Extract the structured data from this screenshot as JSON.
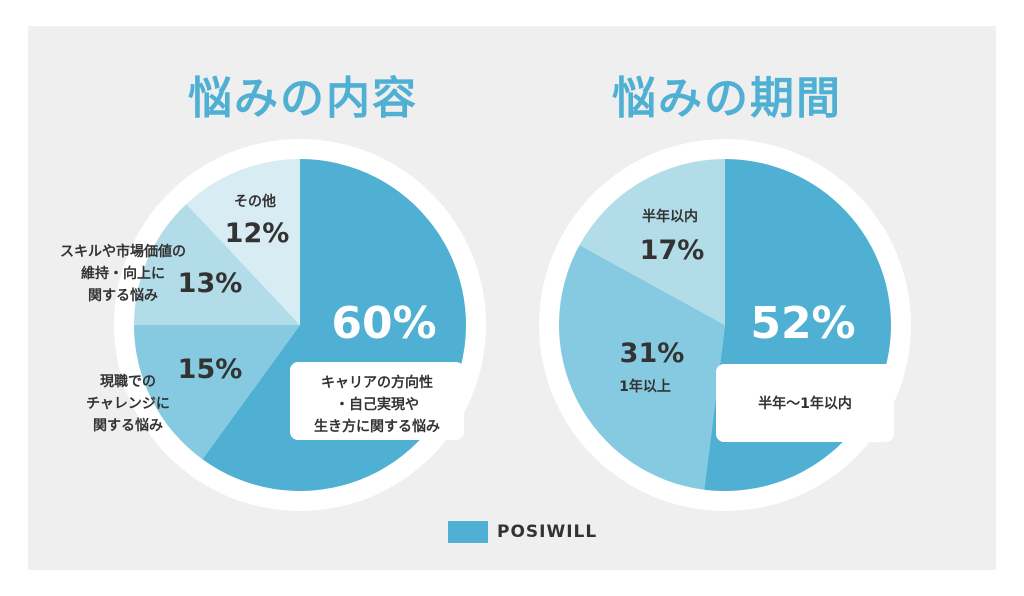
{
  "chart_data": [
    {
      "type": "pie",
      "title": "悩みの内容",
      "colors": [
        "#4fb0d3",
        "#85cae0",
        "#b3dce9",
        "#d8ecf3"
      ],
      "slices": [
        {
          "percent": 60,
          "label": "60%",
          "category": [
            "キャリアの方向性",
            "・自己実現や",
            "生き方に関する悩み"
          ]
        },
        {
          "percent": 15,
          "label": "15%",
          "category": [
            "現職での",
            "チャレンジに",
            "関する悩み"
          ]
        },
        {
          "percent": 13,
          "label": "13%",
          "category": [
            "スキルや市場価値の",
            "維持・向上に",
            "関する悩み"
          ]
        },
        {
          "percent": 12,
          "label": "12%",
          "category": [
            "その他"
          ]
        }
      ]
    },
    {
      "type": "pie",
      "title": "悩みの期間",
      "colors": [
        "#4fb0d3",
        "#85cae0",
        "#b3dce9"
      ],
      "slices": [
        {
          "percent": 52,
          "label": "52%",
          "category": [
            "半年〜1年以内"
          ]
        },
        {
          "percent": 31,
          "label": "31%",
          "category": [
            "1年以上"
          ]
        },
        {
          "percent": 17,
          "label": "17%",
          "category": [
            "半年以内"
          ]
        }
      ]
    }
  ],
  "logo": {
    "text": "POSIWILL"
  }
}
